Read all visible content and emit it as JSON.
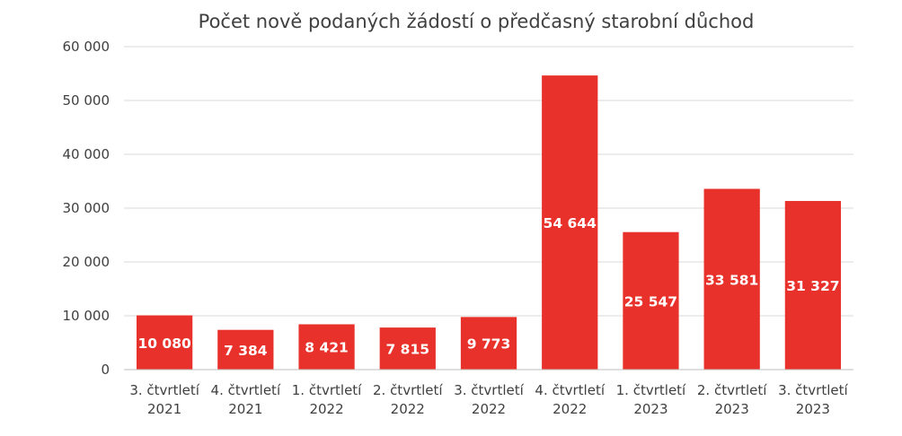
{
  "chart_data": {
    "type": "bar",
    "title": "Počet nově podaných žádostí o předčasný starobní důchod",
    "xlabel": "",
    "ylabel": "",
    "ylim": [
      0,
      60000
    ],
    "yticks": [
      "0",
      "10 000",
      "20 000",
      "30 000",
      "40 000",
      "50 000",
      "60 000"
    ],
    "ytick_values": [
      0,
      10000,
      20000,
      30000,
      40000,
      50000,
      60000
    ],
    "grid": true,
    "bar_color": "#e8312a",
    "categories": [
      [
        "3. čtvrtletí",
        "2021"
      ],
      [
        "4. čtvrtletí",
        "2021"
      ],
      [
        "1. čtvrtletí",
        "2022"
      ],
      [
        "2. čtvrtletí",
        "2022"
      ],
      [
        "3. čtvrtletí",
        "2022"
      ],
      [
        "4. čtvrtletí",
        "2022"
      ],
      [
        "1. čtvrtletí",
        "2023"
      ],
      [
        "2. čtvrtletí",
        "2023"
      ],
      [
        "3. čtvrtletí",
        "2023"
      ]
    ],
    "values": [
      10080,
      7384,
      8421,
      7815,
      9773,
      54644,
      25547,
      33581,
      31327
    ],
    "data_labels": [
      "10 080",
      "7 384",
      "8 421",
      "7 815",
      "9 773",
      "54 644",
      "25 547",
      "33 581",
      "31 327"
    ]
  }
}
